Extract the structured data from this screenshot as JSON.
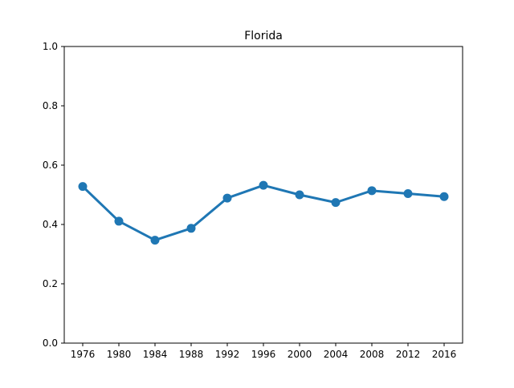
{
  "chart_data": {
    "type": "line",
    "title": "Florida",
    "xlabel": "",
    "ylabel": "",
    "x": [
      "1976",
      "1980",
      "1984",
      "1988",
      "1992",
      "1996",
      "2000",
      "2004",
      "2008",
      "2012",
      "2016"
    ],
    "series": [
      {
        "values": [
          0.528,
          0.411,
          0.347,
          0.387,
          0.489,
          0.532,
          0.5,
          0.474,
          0.514,
          0.504,
          0.494
        ],
        "color": "#1f77b4"
      }
    ],
    "ylim": [
      0,
      1.0
    ],
    "y_ticks": [
      "0.0",
      "0.2",
      "0.4",
      "0.6",
      "0.8",
      "1.0"
    ],
    "grid": false,
    "legend": "none"
  }
}
